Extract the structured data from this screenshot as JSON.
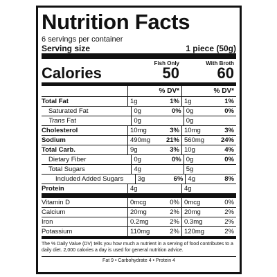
{
  "header": {
    "title": "Nutrition Facts",
    "servings": "6 servings per container",
    "serving_size_label": "Serving size",
    "serving_size_value": "1 piece (50g)"
  },
  "calories": {
    "label": "Calories",
    "columns": [
      {
        "heading": "Fish Only",
        "value": "50"
      },
      {
        "heading": "With Broth",
        "value": "60"
      }
    ]
  },
  "dv_headings": [
    "% DV*",
    "% DV*"
  ],
  "nutrients": [
    {
      "name": "Total Fat",
      "amounts": [
        [
          "1g",
          "1%"
        ],
        [
          "1g",
          "1%"
        ]
      ],
      "children": [
        {
          "name": "Saturated Fat",
          "amounts": [
            [
              "0g",
              "0%"
            ],
            [
              "0g",
              "0%"
            ]
          ]
        },
        {
          "name_prefix": "Trans",
          "name": "Fat",
          "amounts": [
            [
              "0g"
            ],
            [
              "0g"
            ]
          ]
        }
      ]
    },
    {
      "name": "Cholesterol",
      "amounts": [
        [
          "10mg",
          "3%"
        ],
        [
          "10mg",
          "3%"
        ]
      ]
    },
    {
      "name": "Sodium",
      "amounts": [
        [
          "490mg",
          "21%"
        ],
        [
          "560mg",
          "24%"
        ]
      ]
    },
    {
      "name": "Total Carb.",
      "amounts": [
        [
          "9g",
          "3%"
        ],
        [
          "10g",
          "4%"
        ]
      ],
      "children": [
        {
          "name": "Dietary Fiber",
          "amounts": [
            [
              "0g",
              "0%"
            ],
            [
              "0g",
              "0%"
            ]
          ]
        },
        {
          "name": "Total Sugars",
          "amounts": [
            [
              "4g"
            ],
            [
              "5g"
            ]
          ],
          "children": [
            {
              "name": "Included Added Sugars",
              "amounts": [
                [
                  "3g",
                  "6%"
                ],
                [
                  "4g",
                  "8%"
                ]
              ]
            }
          ]
        }
      ]
    },
    {
      "name": "Protein",
      "amounts": [
        [
          "4g"
        ],
        [
          "4g"
        ]
      ]
    }
  ],
  "micronutrients": [
    {
      "name": "Vitamin D",
      "amounts": [
        [
          "0mcg",
          "0%"
        ],
        [
          "0mcg",
          "0%"
        ]
      ]
    },
    {
      "name": "Calcium",
      "amounts": [
        [
          "20mg",
          "2%"
        ],
        [
          "20mg",
          "2%"
        ]
      ]
    },
    {
      "name": "Iron",
      "amounts": [
        [
          "0.2mg",
          "2%"
        ],
        [
          "0.3mg",
          "2%"
        ]
      ]
    },
    {
      "name": "Potassium",
      "amounts": [
        [
          "110mg",
          "2%"
        ],
        [
          "120mg",
          "2%"
        ]
      ]
    }
  ],
  "footnote": "The % Daily Value (DV) tells you how much a nutrient in a serving of food contributes to a daily diet. 2,000 calories a day is used for general nutrition advice.",
  "calories_per_gram": "Fat 9 • Carbohydrate 4 • Protein 4"
}
